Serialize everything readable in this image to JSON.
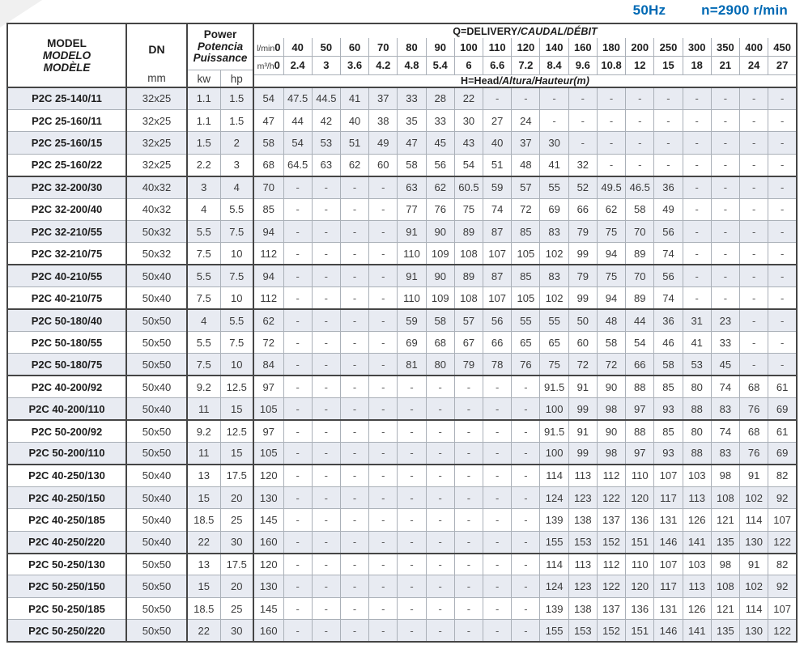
{
  "page_header": {
    "frequency": "50Hz",
    "speed_prefix": "n",
    "speed_value": "=2900 r/min"
  },
  "table": {
    "col_headers": {
      "model": [
        "MODEL",
        "MODELO",
        "MODÈLE"
      ],
      "dn_label": "DN",
      "dn_unit": "mm",
      "power": [
        "Power",
        "Potencia",
        "Puissance"
      ],
      "power_units": [
        "kw",
        "hp"
      ],
      "q_title_main": "Q=DELIVERY",
      "q_title_italic": "/CAUDAL/DÉBIT",
      "lmin_label": "l/min",
      "m3h_label": "m³/h",
      "head_title_main": "H=Head",
      "head_title_italic": "/Altura/Hauteur(m)",
      "flow_lmin": [
        "0",
        "40",
        "50",
        "60",
        "70",
        "80",
        "90",
        "100",
        "110",
        "120",
        "140",
        "160",
        "180",
        "200",
        "250",
        "300",
        "350",
        "400",
        "450"
      ],
      "flow_m3h": [
        "0",
        "2.4",
        "3",
        "3.6",
        "4.2",
        "4.8",
        "5.4",
        "6",
        "6.6",
        "7.2",
        "8.4",
        "9.6",
        "10.8",
        "12",
        "15",
        "18",
        "21",
        "24",
        "27"
      ]
    },
    "group_start_rows": [
      4,
      8,
      10,
      13,
      15,
      17,
      21
    ],
    "rows": [
      {
        "model": "P2C 25-140/11",
        "dn": "32x25",
        "kw": "1.1",
        "hp": "1.5",
        "heads": [
          "54",
          "47.5",
          "44.5",
          "41",
          "37",
          "33",
          "28",
          "22",
          "-",
          "-",
          "-",
          "-",
          "-",
          "-",
          "-",
          "-",
          "-",
          "-",
          "-"
        ]
      },
      {
        "model": "P2C 25-160/11",
        "dn": "32x25",
        "kw": "1.1",
        "hp": "1.5",
        "heads": [
          "47",
          "44",
          "42",
          "40",
          "38",
          "35",
          "33",
          "30",
          "27",
          "24",
          "-",
          "-",
          "-",
          "-",
          "-",
          "-",
          "-",
          "-",
          "-"
        ]
      },
      {
        "model": "P2C 25-160/15",
        "dn": "32x25",
        "kw": "1.5",
        "hp": "2",
        "heads": [
          "58",
          "54",
          "53",
          "51",
          "49",
          "47",
          "45",
          "43",
          "40",
          "37",
          "30",
          "-",
          "-",
          "-",
          "-",
          "-",
          "-",
          "-",
          "-"
        ]
      },
      {
        "model": "P2C 25-160/22",
        "dn": "32x25",
        "kw": "2.2",
        "hp": "3",
        "heads": [
          "68",
          "64.5",
          "63",
          "62",
          "60",
          "58",
          "56",
          "54",
          "51",
          "48",
          "41",
          "32",
          "-",
          "-",
          "-",
          "-",
          "-",
          "-",
          "-"
        ]
      },
      {
        "model": "P2C 32-200/30",
        "dn": "40x32",
        "kw": "3",
        "hp": "4",
        "heads": [
          "70",
          "-",
          "-",
          "-",
          "-",
          "63",
          "62",
          "60.5",
          "59",
          "57",
          "55",
          "52",
          "49.5",
          "46.5",
          "36",
          "-",
          "-",
          "-",
          "-"
        ]
      },
      {
        "model": "P2C 32-200/40",
        "dn": "40x32",
        "kw": "4",
        "hp": "5.5",
        "heads": [
          "85",
          "-",
          "-",
          "-",
          "-",
          "77",
          "76",
          "75",
          "74",
          "72",
          "69",
          "66",
          "62",
          "58",
          "49",
          "-",
          "-",
          "-",
          "-"
        ]
      },
      {
        "model": "P2C 32-210/55",
        "dn": "50x32",
        "kw": "5.5",
        "hp": "7.5",
        "heads": [
          "94",
          "-",
          "-",
          "-",
          "-",
          "91",
          "90",
          "89",
          "87",
          "85",
          "83",
          "79",
          "75",
          "70",
          "56",
          "-",
          "-",
          "-",
          "-"
        ]
      },
      {
        "model": "P2C 32-210/75",
        "dn": "50x32",
        "kw": "7.5",
        "hp": "10",
        "heads": [
          "112",
          "-",
          "-",
          "-",
          "-",
          "110",
          "109",
          "108",
          "107",
          "105",
          "102",
          "99",
          "94",
          "89",
          "74",
          "-",
          "-",
          "-",
          "-"
        ]
      },
      {
        "model": "P2C 40-210/55",
        "dn": "50x40",
        "kw": "5.5",
        "hp": "7.5",
        "heads": [
          "94",
          "-",
          "-",
          "-",
          "-",
          "91",
          "90",
          "89",
          "87",
          "85",
          "83",
          "79",
          "75",
          "70",
          "56",
          "-",
          "-",
          "-",
          "-"
        ]
      },
      {
        "model": "P2C 40-210/75",
        "dn": "50x40",
        "kw": "7.5",
        "hp": "10",
        "heads": [
          "112",
          "-",
          "-",
          "-",
          "-",
          "110",
          "109",
          "108",
          "107",
          "105",
          "102",
          "99",
          "94",
          "89",
          "74",
          "-",
          "-",
          "-",
          "-"
        ]
      },
      {
        "model": "P2C 50-180/40",
        "dn": "50x50",
        "kw": "4",
        "hp": "5.5",
        "heads": [
          "62",
          "-",
          "-",
          "-",
          "-",
          "59",
          "58",
          "57",
          "56",
          "55",
          "55",
          "50",
          "48",
          "44",
          "36",
          "31",
          "23",
          "-",
          "-"
        ]
      },
      {
        "model": "P2C 50-180/55",
        "dn": "50x50",
        "kw": "5.5",
        "hp": "7.5",
        "heads": [
          "72",
          "-",
          "-",
          "-",
          "-",
          "69",
          "68",
          "67",
          "66",
          "65",
          "65",
          "60",
          "58",
          "54",
          "46",
          "41",
          "33",
          "-",
          "-"
        ]
      },
      {
        "model": "P2C 50-180/75",
        "dn": "50x50",
        "kw": "7.5",
        "hp": "10",
        "heads": [
          "84",
          "-",
          "-",
          "-",
          "-",
          "81",
          "80",
          "79",
          "78",
          "76",
          "75",
          "72",
          "72",
          "66",
          "58",
          "53",
          "45",
          "-",
          "-"
        ]
      },
      {
        "model": "P2C 40-200/92",
        "dn": "50x40",
        "kw": "9.2",
        "hp": "12.5",
        "heads": [
          "97",
          "-",
          "-",
          "-",
          "-",
          "-",
          "-",
          "-",
          "-",
          "-",
          "91.5",
          "91",
          "90",
          "88",
          "85",
          "80",
          "74",
          "68",
          "61"
        ]
      },
      {
        "model": "P2C 40-200/110",
        "dn": "50x40",
        "kw": "11",
        "hp": "15",
        "heads": [
          "105",
          "-",
          "-",
          "-",
          "-",
          "-",
          "-",
          "-",
          "-",
          "-",
          "100",
          "99",
          "98",
          "97",
          "93",
          "88",
          "83",
          "76",
          "69"
        ]
      },
      {
        "model": "P2C 50-200/92",
        "dn": "50x50",
        "kw": "9.2",
        "hp": "12.5",
        "heads": [
          "97",
          "-",
          "-",
          "-",
          "-",
          "-",
          "-",
          "-",
          "-",
          "-",
          "91.5",
          "91",
          "90",
          "88",
          "85",
          "80",
          "74",
          "68",
          "61"
        ]
      },
      {
        "model": "P2C 50-200/110",
        "dn": "50x50",
        "kw": "11",
        "hp": "15",
        "heads": [
          "105",
          "-",
          "-",
          "-",
          "-",
          "-",
          "-",
          "-",
          "-",
          "-",
          "100",
          "99",
          "98",
          "97",
          "93",
          "88",
          "83",
          "76",
          "69"
        ]
      },
      {
        "model": "P2C 40-250/130",
        "dn": "50x40",
        "kw": "13",
        "hp": "17.5",
        "heads": [
          "120",
          "-",
          "-",
          "-",
          "-",
          "-",
          "-",
          "-",
          "-",
          "-",
          "114",
          "113",
          "112",
          "110",
          "107",
          "103",
          "98",
          "91",
          "82"
        ]
      },
      {
        "model": "P2C 40-250/150",
        "dn": "50x40",
        "kw": "15",
        "hp": "20",
        "heads": [
          "130",
          "-",
          "-",
          "-",
          "-",
          "-",
          "-",
          "-",
          "-",
          "-",
          "124",
          "123",
          "122",
          "120",
          "117",
          "113",
          "108",
          "102",
          "92"
        ]
      },
      {
        "model": "P2C 40-250/185",
        "dn": "50x40",
        "kw": "18.5",
        "hp": "25",
        "heads": [
          "145",
          "-",
          "-",
          "-",
          "-",
          "-",
          "-",
          "-",
          "-",
          "-",
          "139",
          "138",
          "137",
          "136",
          "131",
          "126",
          "121",
          "114",
          "107"
        ]
      },
      {
        "model": "P2C 40-250/220",
        "dn": "50x40",
        "kw": "22",
        "hp": "30",
        "heads": [
          "160",
          "-",
          "-",
          "-",
          "-",
          "-",
          "-",
          "-",
          "-",
          "-",
          "155",
          "153",
          "152",
          "151",
          "146",
          "141",
          "135",
          "130",
          "122"
        ]
      },
      {
        "model": "P2C 50-250/130",
        "dn": "50x50",
        "kw": "13",
        "hp": "17.5",
        "heads": [
          "120",
          "-",
          "-",
          "-",
          "-",
          "-",
          "-",
          "-",
          "-",
          "-",
          "114",
          "113",
          "112",
          "110",
          "107",
          "103",
          "98",
          "91",
          "82"
        ]
      },
      {
        "model": "P2C 50-250/150",
        "dn": "50x50",
        "kw": "15",
        "hp": "20",
        "heads": [
          "130",
          "-",
          "-",
          "-",
          "-",
          "-",
          "-",
          "-",
          "-",
          "-",
          "124",
          "123",
          "122",
          "120",
          "117",
          "113",
          "108",
          "102",
          "92"
        ]
      },
      {
        "model": "P2C 50-250/185",
        "dn": "50x50",
        "kw": "18.5",
        "hp": "25",
        "heads": [
          "145",
          "-",
          "-",
          "-",
          "-",
          "-",
          "-",
          "-",
          "-",
          "-",
          "139",
          "138",
          "137",
          "136",
          "131",
          "126",
          "121",
          "114",
          "107"
        ]
      },
      {
        "model": "P2C 50-250/220",
        "dn": "50x50",
        "kw": "22",
        "hp": "30",
        "heads": [
          "160",
          "-",
          "-",
          "-",
          "-",
          "-",
          "-",
          "-",
          "-",
          "-",
          "155",
          "153",
          "152",
          "151",
          "146",
          "141",
          "135",
          "130",
          "122"
        ]
      }
    ]
  },
  "colors": {
    "accent_blue": "#0069b4",
    "row_stripe": "#e8ebf2",
    "border_dark": "#454545",
    "border_light": "#aab0b8"
  }
}
